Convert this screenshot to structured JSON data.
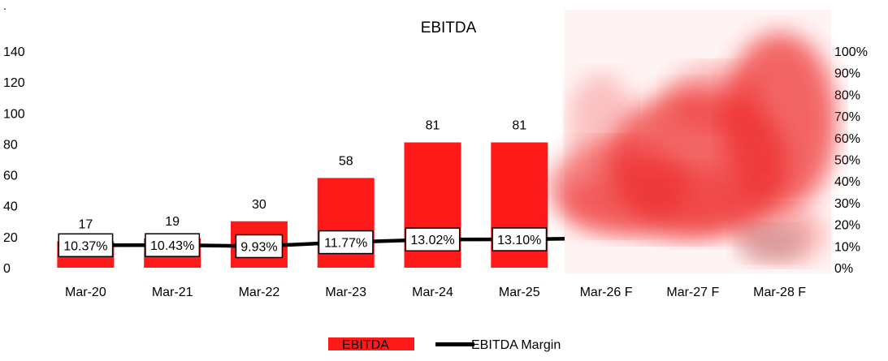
{
  "corner_mark": ".",
  "chart_data": {
    "type": "bar",
    "title": "EBITDA",
    "categories": [
      "Mar-20",
      "Mar-21",
      "Mar-22",
      "Mar-23",
      "Mar-24",
      "Mar-25",
      "Mar-26 F",
      "Mar-27 F",
      "Mar-28 F"
    ],
    "series": [
      {
        "name": "EBITDA",
        "type": "bar",
        "axis": "left",
        "color": "#ff1a1a",
        "values": [
          17,
          19,
          30,
          58,
          81,
          81,
          null,
          null,
          null
        ],
        "data_labels": [
          "17",
          "19",
          "30",
          "58",
          "81",
          "81",
          null,
          null,
          null
        ]
      },
      {
        "name": "EBITDA Margin",
        "type": "line",
        "axis": "right",
        "color": "#000000",
        "values": [
          10.37,
          10.43,
          9.93,
          11.77,
          13.02,
          13.1,
          null,
          null,
          null
        ],
        "data_labels": [
          "10.37%",
          "10.43%",
          "9.93%",
          "11.77%",
          "13.02%",
          "13.10%",
          null,
          null,
          null
        ]
      }
    ],
    "y_left": {
      "ylim": [
        0,
        140
      ],
      "ticks": [
        "0",
        "20",
        "40",
        "60",
        "80",
        "100",
        "120",
        "140"
      ]
    },
    "y_right": {
      "ylim": [
        0,
        100
      ],
      "ticks": [
        "0%",
        "10%",
        "20%",
        "30%",
        "40%",
        "50%",
        "60%",
        "70%",
        "80%",
        "90%",
        "100%"
      ]
    },
    "grid": false,
    "legend_position": "bottom",
    "redacted_region": "forecast years (Mar-26 F to Mar-28 F) obscured by red pixelated blur"
  }
}
